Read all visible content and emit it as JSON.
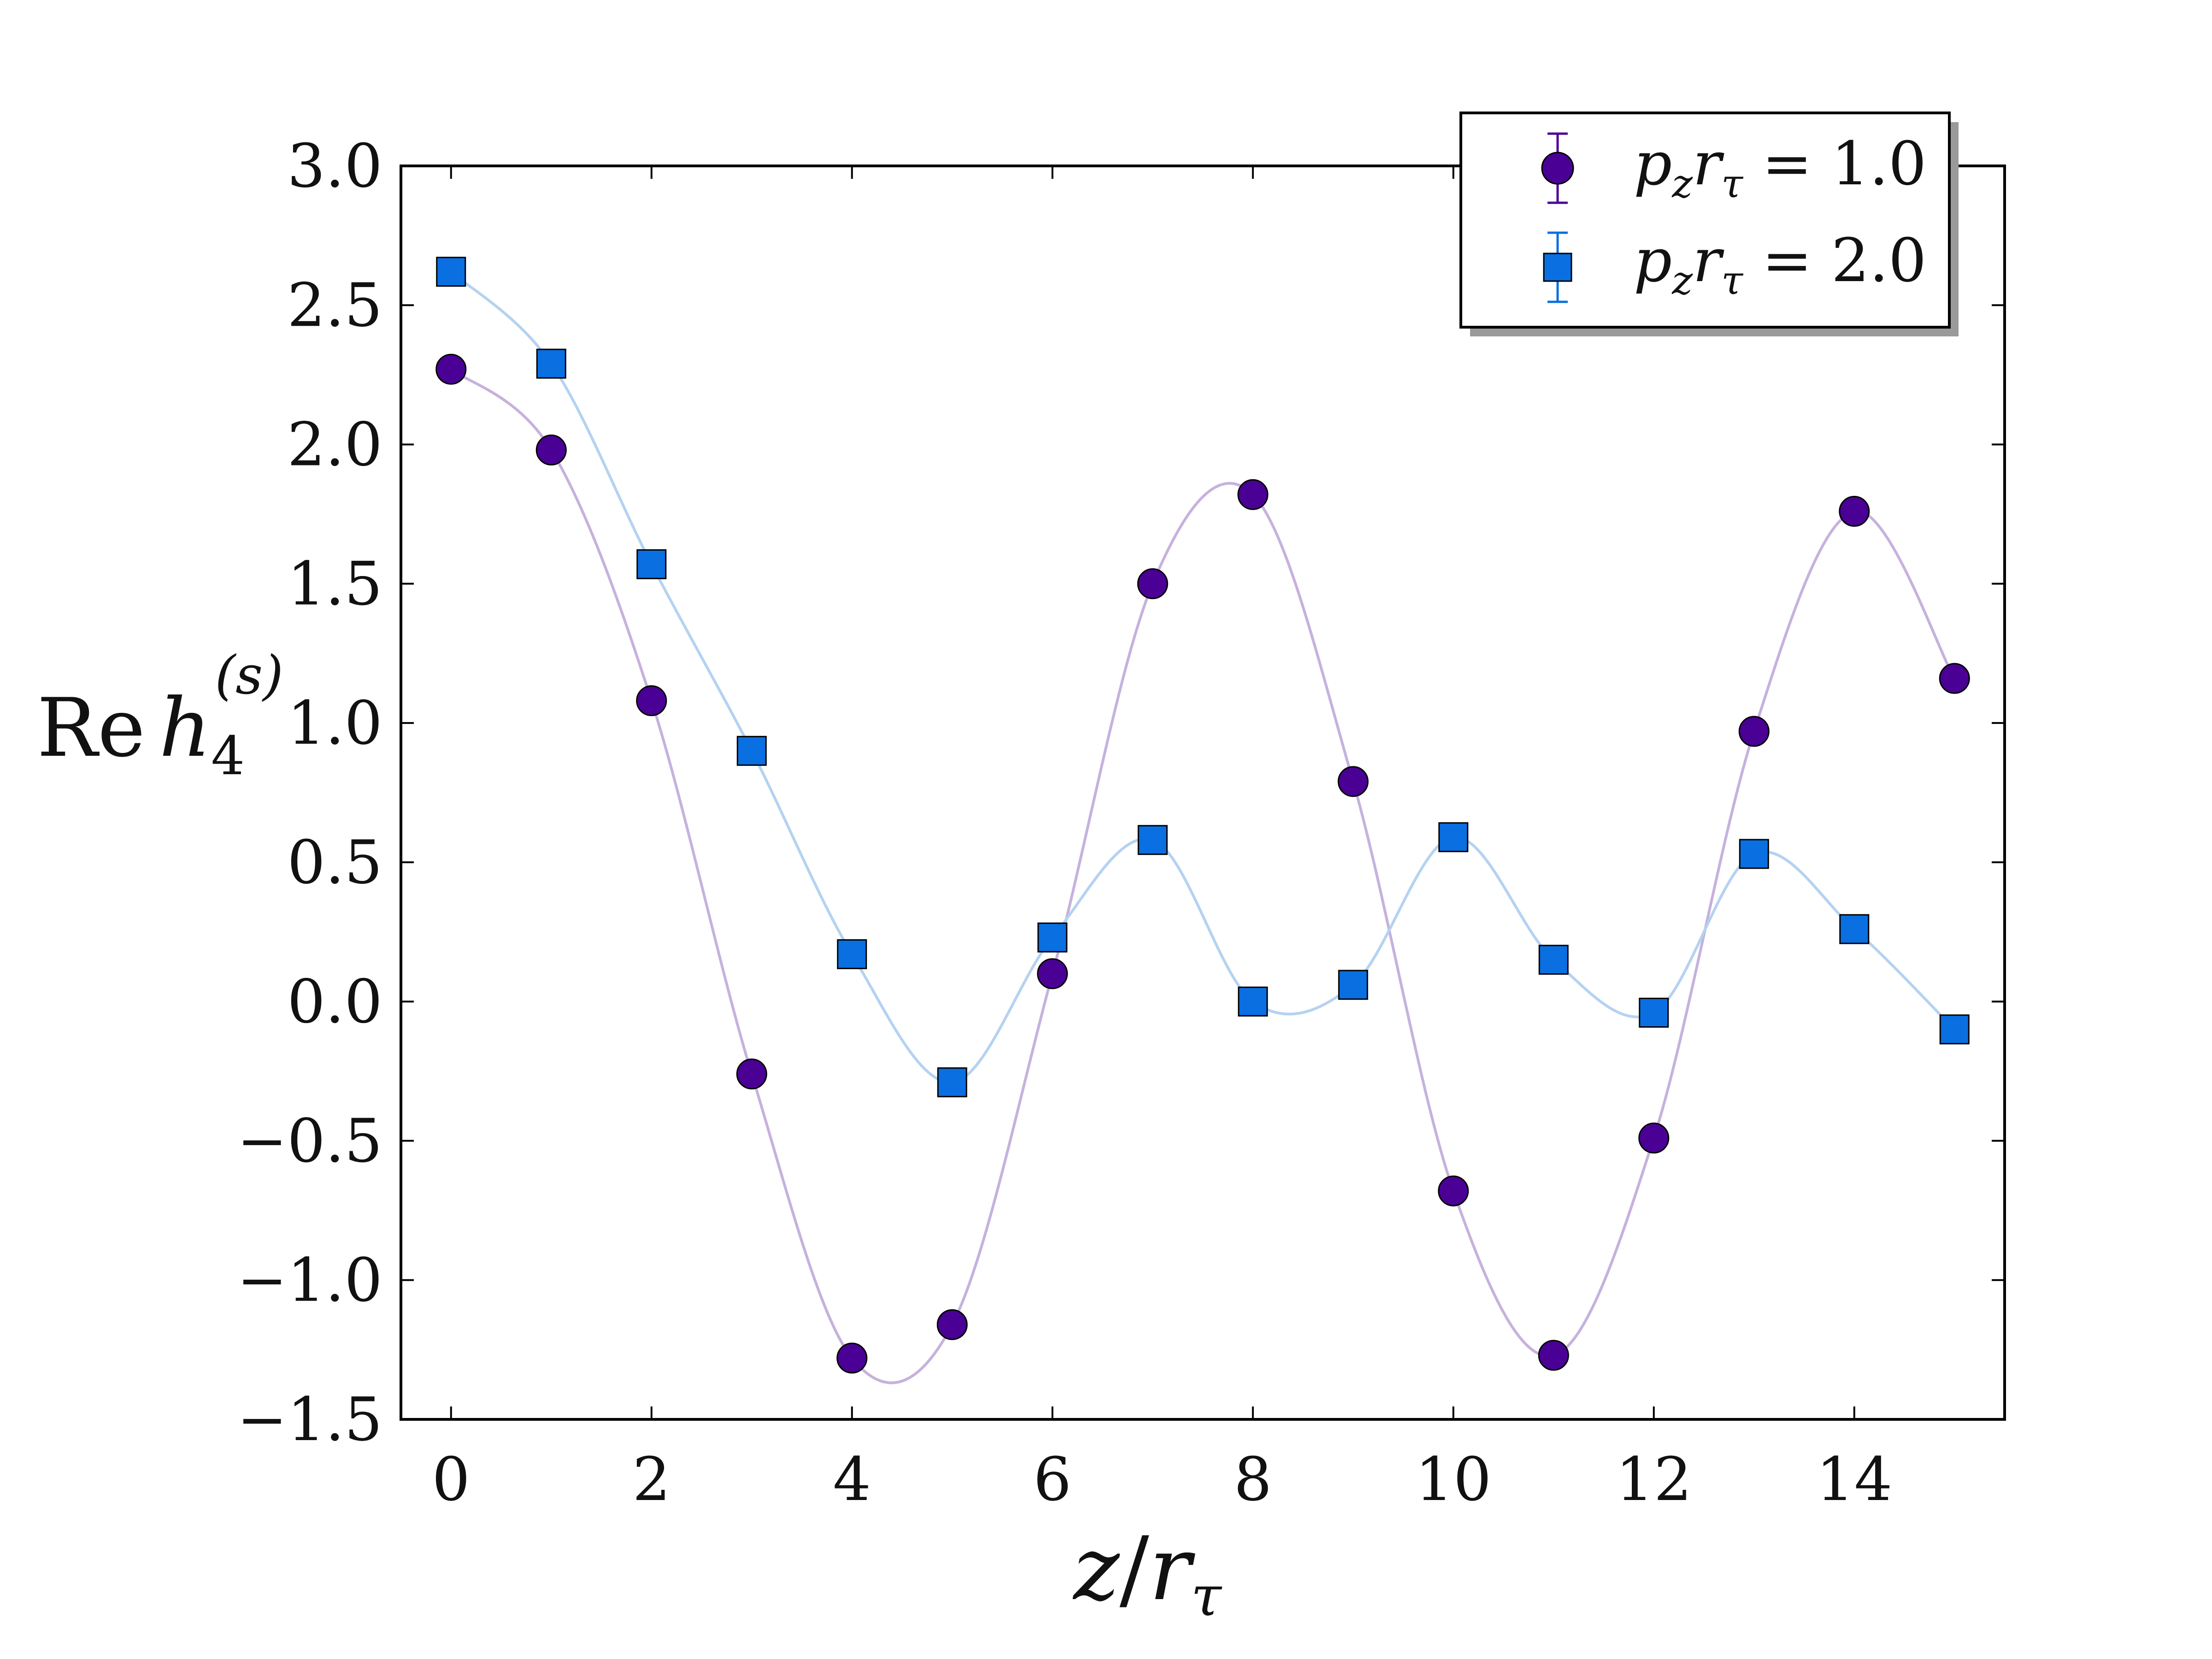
{
  "chart_data": {
    "type": "scatter",
    "x": [
      0,
      1,
      2,
      3,
      4,
      5,
      6,
      7,
      8,
      9,
      10,
      11,
      12,
      13,
      14,
      15
    ],
    "series": [
      {
        "name": "p_z r_τ = 1.0",
        "marker": "circle",
        "color": "#4b0095",
        "curve_color": "#c6b2dd",
        "values": [
          2.27,
          1.98,
          1.08,
          -0.26,
          -1.28,
          -1.16,
          0.1,
          1.5,
          1.82,
          0.79,
          -0.68,
          -1.27,
          -0.49,
          0.97,
          1.76,
          1.16
        ]
      },
      {
        "name": "p_z r_τ = 2.0",
        "marker": "square",
        "color": "#0a6fe0",
        "curve_color": "#b5d2f0",
        "values": [
          2.62,
          2.29,
          1.57,
          0.9,
          0.17,
          -0.29,
          0.23,
          0.58,
          0.0,
          0.06,
          0.59,
          0.15,
          -0.04,
          0.53,
          0.26,
          -0.1
        ]
      }
    ],
    "xlim": [
      -0.5,
      15.5
    ],
    "ylim": [
      -1.5,
      3.0
    ],
    "xticks": [
      0,
      2,
      4,
      6,
      8,
      10,
      12,
      14
    ],
    "yticks": [
      -1.5,
      -1.0,
      -0.5,
      0.0,
      0.5,
      1.0,
      1.5,
      2.0,
      2.5,
      3.0
    ],
    "xtick_labels": [
      "0",
      "2",
      "4",
      "6",
      "8",
      "10",
      "12",
      "14"
    ],
    "ytick_labels": [
      "−1.5",
      "−1.0",
      "−0.5",
      "0.0",
      "0.5",
      "1.0",
      "1.5",
      "2.0",
      "2.5",
      "3.0"
    ],
    "xlabel": "z/r_τ",
    "ylabel": "Re h_4^(s)",
    "legend_position": "top-right",
    "grid": false
  },
  "legend": [
    {
      "label_main": "p",
      "label_sub1": "z",
      "label_mid": "r",
      "label_sub2": "τ",
      "label_eq": " = 1.0"
    },
    {
      "label_main": "p",
      "label_sub1": "z",
      "label_mid": "r",
      "label_sub2": "τ",
      "label_eq": " = 2.0"
    }
  ],
  "axis_text": {
    "x_main": "z",
    "x_slash": "/",
    "x_r": "r",
    "x_sub": "τ",
    "y_re": "Re",
    "y_h": "h",
    "y_sub": "4",
    "y_sup": "(s)"
  }
}
